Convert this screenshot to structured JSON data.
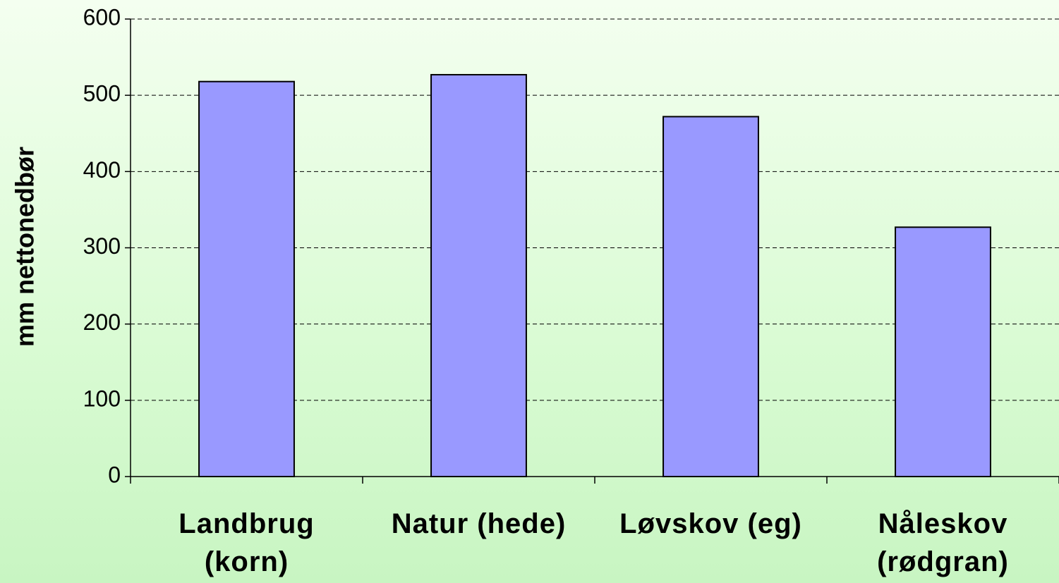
{
  "chart_data": {
    "type": "bar",
    "y_label": "mm nettonedbør",
    "categories": [
      "Landbrug (korn)",
      "Natur (hede)",
      "Løvskov (eg)",
      "Nåleskov (rødgran)"
    ],
    "values": [
      518,
      527,
      472,
      327
    ],
    "color": "#9999ff",
    "ylim": [
      0,
      600
    ],
    "yticks": [
      0,
      100,
      200,
      300,
      400,
      500,
      600
    ],
    "grid": true
  }
}
